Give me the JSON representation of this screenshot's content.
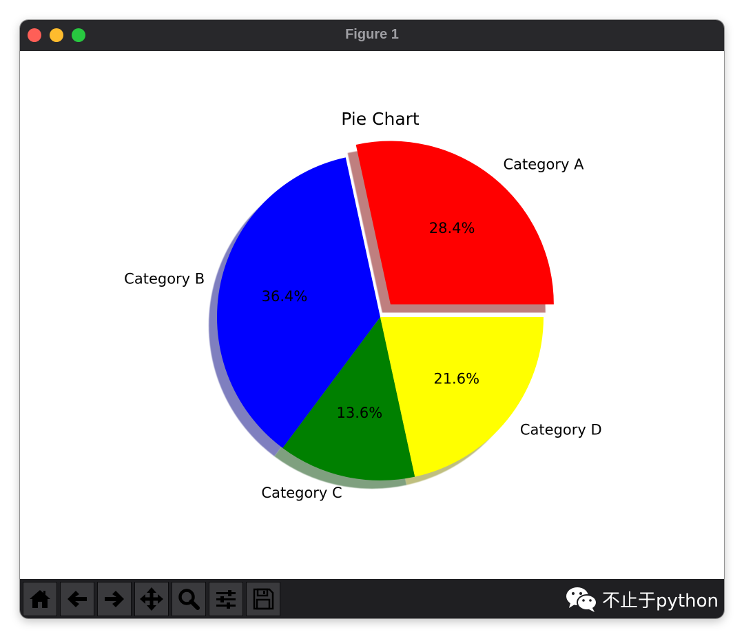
{
  "window": {
    "title": "Figure 1"
  },
  "toolbar": {
    "buttons": [
      {
        "icon": "home-icon"
      },
      {
        "icon": "arrow-left-icon"
      },
      {
        "icon": "arrow-right-icon"
      },
      {
        "icon": "move-icon"
      },
      {
        "icon": "zoom-icon"
      },
      {
        "icon": "sliders-icon"
      },
      {
        "icon": "save-icon"
      }
    ]
  },
  "watermark": {
    "text": "不止于python",
    "icon": "wechat-icon"
  },
  "colors": {
    "titlebar": "#28282b",
    "toolbar": "#1f1f22"
  },
  "chart_data": {
    "type": "pie",
    "title": "Pie Chart",
    "categories": [
      "Category A",
      "Category B",
      "Category C",
      "Category D"
    ],
    "values": [
      28.4,
      36.4,
      13.6,
      21.6
    ],
    "labels": [
      "28.4%",
      "36.4%",
      "13.6%",
      "21.6%"
    ],
    "colors": [
      "#ff0000",
      "#0000ff",
      "#008000",
      "#ffff00"
    ],
    "explode": [
      0.1,
      0,
      0,
      0
    ],
    "start_angle_deg": 0,
    "shadow": true
  }
}
